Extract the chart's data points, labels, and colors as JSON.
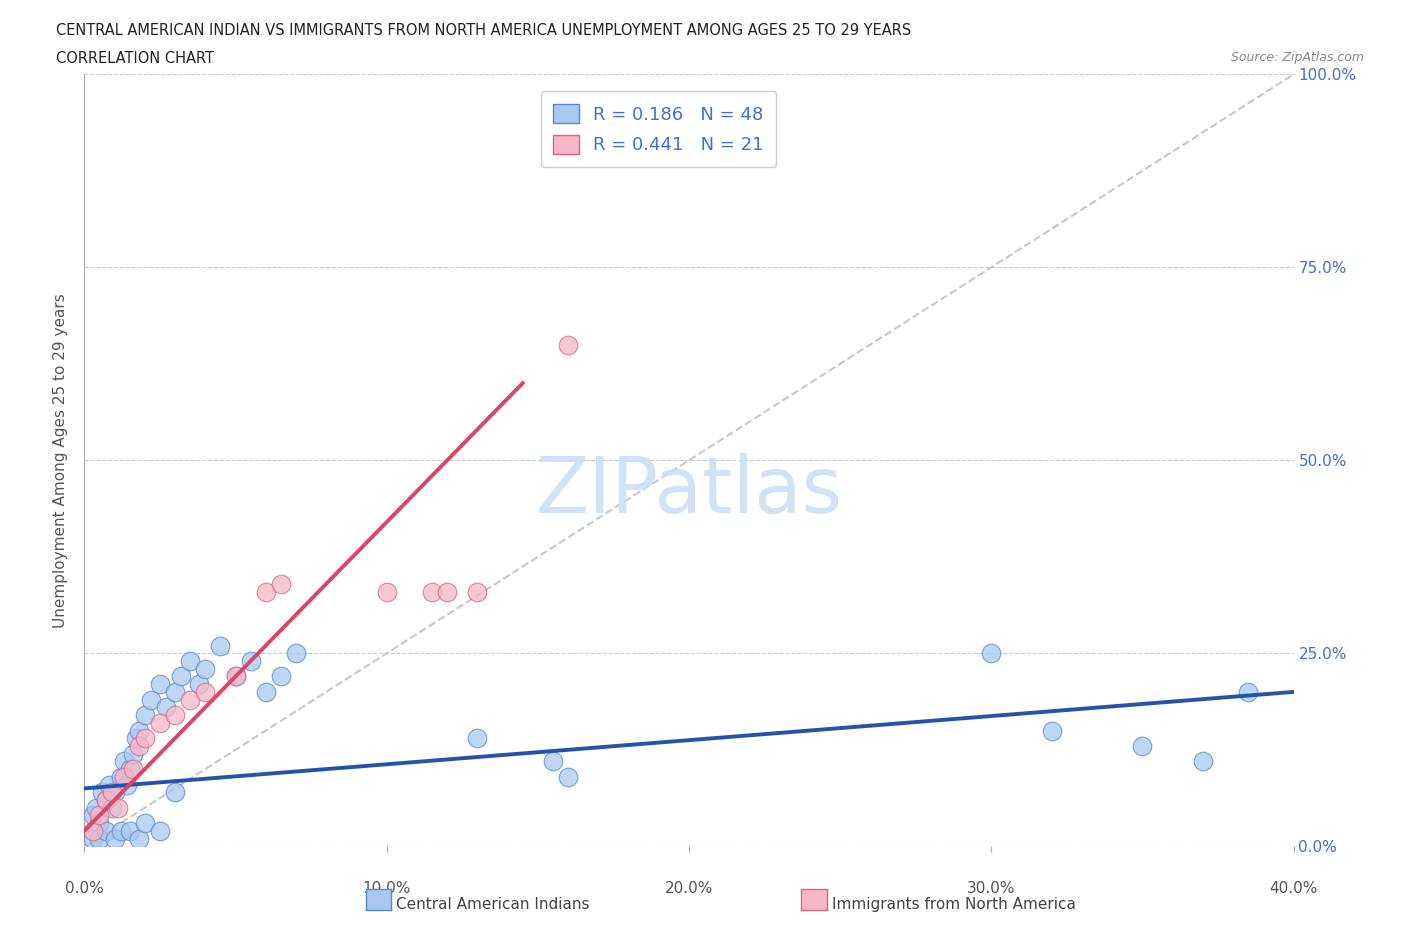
{
  "title_line1": "CENTRAL AMERICAN INDIAN VS IMMIGRANTS FROM NORTH AMERICA UNEMPLOYMENT AMONG AGES 25 TO 29 YEARS",
  "title_line2": "CORRELATION CHART",
  "source_text": "Source: ZipAtlas.com",
  "ylabel": "Unemployment Among Ages 25 to 29 years",
  "xlim": [
    0.0,
    0.4
  ],
  "ylim": [
    0.0,
    1.0
  ],
  "xticks": [
    0.0,
    0.1,
    0.2,
    0.3,
    0.4
  ],
  "yticks": [
    0.0,
    0.25,
    0.5,
    0.75,
    1.0
  ],
  "right_ytick_labels": [
    "0.0%",
    "25.0%",
    "50.0%",
    "75.0%",
    "100.0%"
  ],
  "bottom_xtick_labels": [
    "0.0%",
    "10.0%",
    "20.0%",
    "30.0%",
    "40.0%"
  ],
  "blue_R": 0.186,
  "blue_N": 48,
  "pink_R": 0.441,
  "pink_N": 21,
  "blue_color": "#A8C8F0",
  "pink_color": "#F5B8C8",
  "blue_edge_color": "#5588CC",
  "pink_edge_color": "#E06080",
  "blue_line_color": "#2255AA",
  "pink_line_color": "#DD4466",
  "diag_color": "#BBBBBB",
  "legend_label_blue": "Central American Indians",
  "legend_label_pink": "Immigrants from North America",
  "watermark_text": "ZIPatlas",
  "watermark_color": "#C8DFF5",
  "blue_trend_x": [
    0.0,
    0.4
  ],
  "blue_trend_y": [
    0.075,
    0.2
  ],
  "pink_trend_x": [
    0.0,
    0.145
  ],
  "pink_trend_y": [
    0.02,
    0.6
  ],
  "blue_dots_x": [
    0.003,
    0.004,
    0.005,
    0.006,
    0.007,
    0.008,
    0.009,
    0.01,
    0.012,
    0.013,
    0.014,
    0.015,
    0.016,
    0.017,
    0.018,
    0.02,
    0.022,
    0.025,
    0.027,
    0.03,
    0.032,
    0.035,
    0.038,
    0.04,
    0.045,
    0.05,
    0.055,
    0.06,
    0.065,
    0.07,
    0.003,
    0.005,
    0.007,
    0.01,
    0.012,
    0.015,
    0.018,
    0.02,
    0.025,
    0.03,
    0.13,
    0.155,
    0.16,
    0.3,
    0.32,
    0.35,
    0.37,
    0.385
  ],
  "blue_dots_y": [
    0.04,
    0.05,
    0.03,
    0.07,
    0.06,
    0.08,
    0.05,
    0.07,
    0.09,
    0.11,
    0.08,
    0.1,
    0.12,
    0.14,
    0.15,
    0.17,
    0.19,
    0.21,
    0.18,
    0.2,
    0.22,
    0.24,
    0.21,
    0.23,
    0.26,
    0.22,
    0.24,
    0.2,
    0.22,
    0.25,
    0.01,
    0.01,
    0.02,
    0.01,
    0.02,
    0.02,
    0.01,
    0.03,
    0.02,
    0.07,
    0.14,
    0.11,
    0.09,
    0.25,
    0.15,
    0.13,
    0.11,
    0.2
  ],
  "pink_dots_x": [
    0.003,
    0.005,
    0.007,
    0.009,
    0.011,
    0.013,
    0.016,
    0.018,
    0.02,
    0.025,
    0.03,
    0.035,
    0.04,
    0.05,
    0.06,
    0.065,
    0.1,
    0.115,
    0.12,
    0.13,
    0.16
  ],
  "pink_dots_y": [
    0.02,
    0.04,
    0.06,
    0.07,
    0.05,
    0.09,
    0.1,
    0.13,
    0.14,
    0.16,
    0.17,
    0.19,
    0.2,
    0.22,
    0.33,
    0.34,
    0.33,
    0.33,
    0.33,
    0.33,
    0.65
  ]
}
